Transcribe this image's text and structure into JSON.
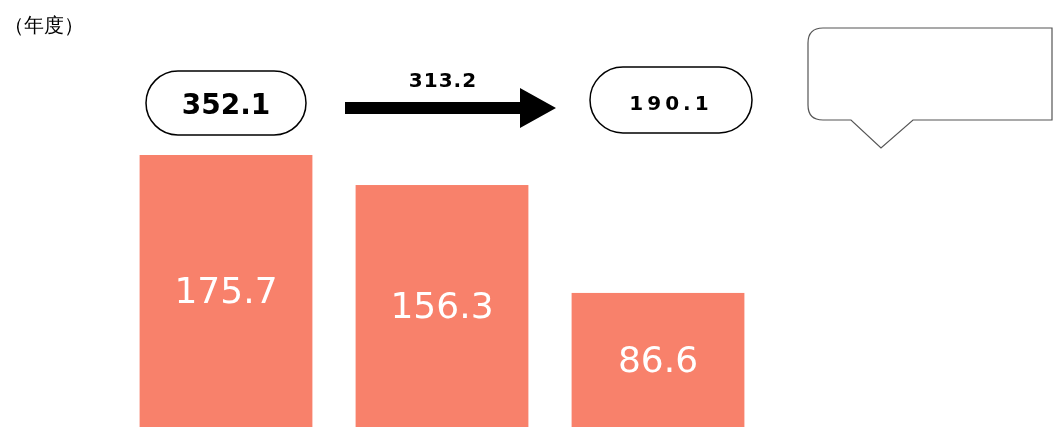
{
  "chart_data": {
    "type": "bar",
    "categories": [
      null,
      null,
      null
    ],
    "values": [
      175.7,
      156.3,
      86.6
    ],
    "color": "#f8816b",
    "data_labels": true,
    "annotations": [
      "（年度）",
      "352.1",
      "313.2",
      "190.1"
    ]
  }
}
